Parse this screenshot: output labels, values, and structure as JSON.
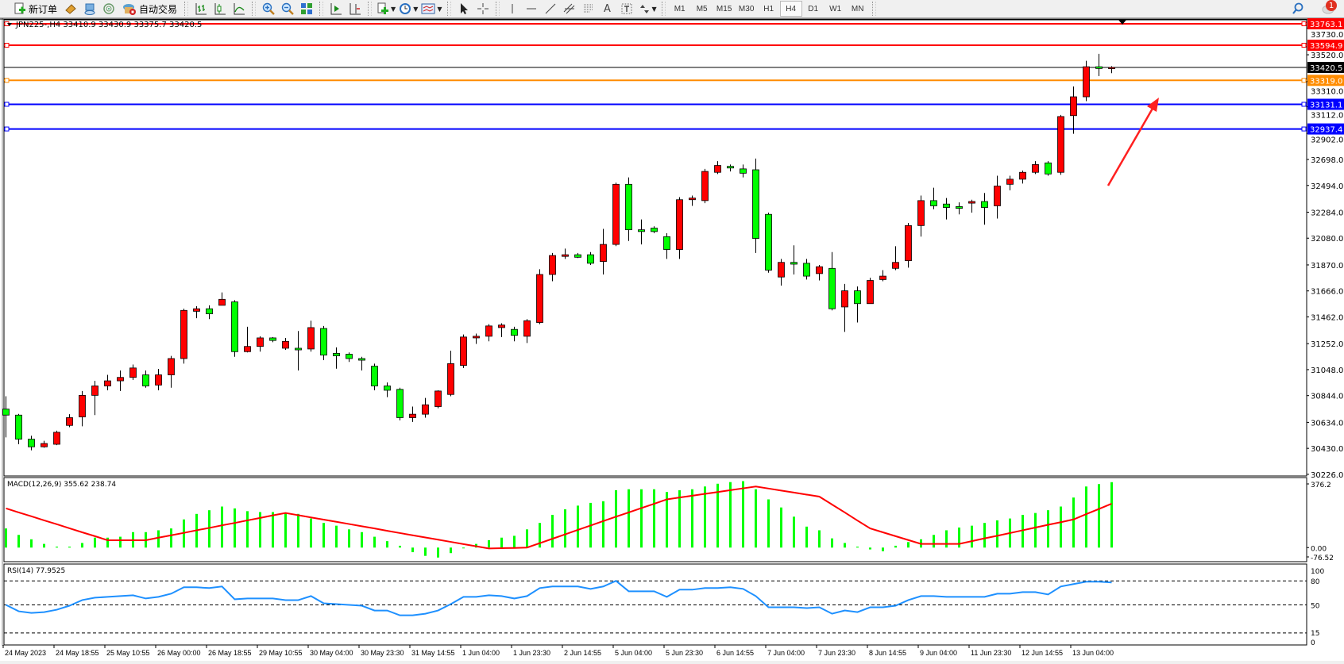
{
  "toolbar": {
    "new_order_label": "新订单",
    "auto_trading_label": "自动交易",
    "icons": [
      "new-order-icon",
      "market-watch-icon",
      "data-window-icon",
      "navigator-icon",
      "signals-icon",
      "auto-trading-icon",
      "bar-chart-icon",
      "candlestick-icon",
      "line-chart-icon",
      "zoom-in-icon",
      "zoom-out-icon",
      "tile-windows-icon",
      "auto-scroll-icon",
      "chart-shift-icon",
      "indicators-icon",
      "periods-icon",
      "templates-icon",
      "cursor-icon",
      "crosshair-icon",
      "vertical-line-icon",
      "horizontal-line-icon",
      "trendline-icon",
      "equidistant-channel-icon",
      "fibonacci-icon",
      "text-icon",
      "text-label-icon",
      "arrows-icon"
    ],
    "text_tool_label": "A",
    "timeframes": [
      "M1",
      "M5",
      "M15",
      "M30",
      "H1",
      "H4",
      "D1",
      "W1",
      "MN"
    ],
    "active_timeframe": "H4",
    "notification_count": "1"
  },
  "chart_data": {
    "type": "candlestick",
    "title": "JPN225-,H4  33410.9 33430.9 33375.7 33420.5",
    "symbol": "JPN225-",
    "timeframe": "H4",
    "colors": {
      "bull": "#ff0000",
      "bear": "#00ff00",
      "wick": "#000000"
    },
    "ylim": [
      30213,
      33788
    ],
    "y_ticks": [
      "33730.0",
      "33520.0",
      "33310.0",
      "33112.0",
      "32902.0",
      "32698.0",
      "32494.0",
      "32284.0",
      "32080.0",
      "31870.0",
      "31666.0",
      "31462.0",
      "31252.0",
      "31048.0",
      "30844.0",
      "30634.0",
      "30430.0",
      "30226.0"
    ],
    "x_ticks": [
      "24 May 2023",
      "24 May 18:55",
      "25 May 10:55",
      "26 May 00:00",
      "26 May 18:55",
      "29 May 10:55",
      "30 May 04:00",
      "30 May 23:30",
      "31 May 14:55",
      "1 Jun 04:00",
      "1 Jun 23:30",
      "2 Jun 14:55",
      "5 Jun 04:00",
      "5 Jun 23:30",
      "6 Jun 14:55",
      "7 Jun 04:00",
      "7 Jun 23:30",
      "8 Jun 14:55",
      "9 Jun 04:00",
      "11 Jun 23:30",
      "12 Jun 14:55",
      "13 Jun 04:00"
    ],
    "ohlc": [
      [
        30738,
        30839,
        30516,
        30691
      ],
      [
        30691,
        30700,
        30462,
        30502
      ],
      [
        30502,
        30529,
        30415,
        30442
      ],
      [
        30442,
        30489,
        30435,
        30468
      ],
      [
        30462,
        30569,
        30455,
        30556
      ],
      [
        30610,
        30698,
        30596,
        30671
      ],
      [
        30677,
        30880,
        30603,
        30846
      ],
      [
        30846,
        30960,
        30691,
        30920
      ],
      [
        30920,
        31007,
        30886,
        30960
      ],
      [
        30960,
        31041,
        30880,
        30987
      ],
      [
        30987,
        31088,
        30967,
        31061
      ],
      [
        31007,
        31041,
        30906,
        30920
      ],
      [
        30927,
        31054,
        30886,
        31007
      ],
      [
        31007,
        31156,
        30906,
        31135
      ],
      [
        31135,
        31526,
        31095,
        31513
      ],
      [
        31506,
        31546,
        31452,
        31526
      ],
      [
        31526,
        31553,
        31445,
        31486
      ],
      [
        31553,
        31654,
        31553,
        31600
      ],
      [
        31580,
        31593,
        31149,
        31189
      ],
      [
        31189,
        31385,
        31183,
        31230
      ],
      [
        31230,
        31310,
        31189,
        31297
      ],
      [
        31297,
        31304,
        31263,
        31277
      ],
      [
        31216,
        31297,
        31203,
        31270
      ],
      [
        31216,
        31351,
        31041,
        31203
      ],
      [
        31210,
        31432,
        31189,
        31378
      ],
      [
        31371,
        31391,
        31122,
        31162
      ],
      [
        31176,
        31223,
        31055,
        31156
      ],
      [
        31169,
        31183,
        31108,
        31135
      ],
      [
        31135,
        31149,
        31041,
        31122
      ],
      [
        31075,
        31095,
        30886,
        30920
      ],
      [
        30920,
        30947,
        30832,
        30886
      ],
      [
        30893,
        30906,
        30650,
        30671
      ],
      [
        30671,
        30758,
        30637,
        30698
      ],
      [
        30698,
        30826,
        30671,
        30772
      ],
      [
        30758,
        30886,
        30745,
        30880
      ],
      [
        30853,
        31196,
        30839,
        31095
      ],
      [
        31081,
        31324,
        31061,
        31304
      ],
      [
        31297,
        31331,
        31250,
        31310
      ],
      [
        31310,
        31405,
        31270,
        31391
      ],
      [
        31378,
        31412,
        31304,
        31398
      ],
      [
        31364,
        31385,
        31270,
        31317
      ],
      [
        31310,
        31445,
        31257,
        31432
      ],
      [
        31418,
        31836,
        31405,
        31795
      ],
      [
        31795,
        31964,
        31742,
        31944
      ],
      [
        31937,
        31998,
        31917,
        31950
      ],
      [
        31950,
        31964,
        31924,
        31930
      ],
      [
        31950,
        31971,
        31870,
        31883
      ],
      [
        31897,
        32153,
        31795,
        32031
      ],
      [
        32031,
        32516,
        32018,
        32503
      ],
      [
        32503,
        32557,
        32058,
        32146
      ],
      [
        32146,
        32227,
        32031,
        32132
      ],
      [
        32159,
        32173,
        32119,
        32132
      ],
      [
        32092,
        32119,
        31917,
        31991
      ],
      [
        31991,
        32402,
        31917,
        32382
      ],
      [
        32382,
        32415,
        32334,
        32395
      ],
      [
        32375,
        32624,
        32355,
        32604
      ],
      [
        32597,
        32685,
        32584,
        32651
      ],
      [
        32644,
        32658,
        32604,
        32631
      ],
      [
        32624,
        32658,
        32557,
        32590
      ],
      [
        32617,
        32705,
        31964,
        32078
      ],
      [
        32267,
        32281,
        31809,
        31829
      ],
      [
        31775,
        31917,
        31708,
        31890
      ],
      [
        31890,
        32024,
        31795,
        31876
      ],
      [
        31883,
        31917,
        31755,
        31782
      ],
      [
        31802,
        31870,
        31748,
        31856
      ],
      [
        31843,
        31971,
        31513,
        31526
      ],
      [
        31540,
        31721,
        31344,
        31667
      ],
      [
        31667,
        31701,
        31418,
        31566
      ],
      [
        31566,
        31769,
        31566,
        31748
      ],
      [
        31755,
        31829,
        31742,
        31782
      ],
      [
        31843,
        32017,
        31829,
        31890
      ],
      [
        31903,
        32200,
        31849,
        32179
      ],
      [
        32179,
        32415,
        32092,
        32375
      ],
      [
        32375,
        32476,
        32307,
        32334
      ],
      [
        32348,
        32395,
        32227,
        32321
      ],
      [
        32328,
        32361,
        32267,
        32314
      ],
      [
        32355,
        32382,
        32281,
        32368
      ],
      [
        32368,
        32435,
        32186,
        32321
      ],
      [
        32334,
        32570,
        32234,
        32489
      ],
      [
        32503,
        32570,
        32456,
        32543
      ],
      [
        32543,
        32611,
        32509,
        32597
      ],
      [
        32597,
        32685,
        32584,
        32658
      ],
      [
        32671,
        32685,
        32570,
        32584
      ],
      [
        32597,
        33048,
        32577,
        33035
      ],
      [
        33042,
        33271,
        32900,
        33190
      ],
      [
        33190,
        33473,
        33156,
        33426
      ],
      [
        33426,
        33527,
        33352,
        33412
      ],
      [
        33410.9,
        33430.9,
        33375.7,
        33420.5
      ]
    ],
    "price_lines": [
      {
        "value": "33763.1",
        "color": "#ff0000"
      },
      {
        "value": "33594.9",
        "color": "#ff0000"
      },
      {
        "value": "33420.5",
        "color": "#000000",
        "kind": "bid"
      },
      {
        "value": "33319.0",
        "color": "#ff8c00"
      },
      {
        "value": "33131.1",
        "color": "#0000ff"
      },
      {
        "value": "32937.4",
        "color": "#0000ff"
      }
    ],
    "annotation": {
      "type": "arrow",
      "color": "#ff2020",
      "direction": "up-right"
    },
    "macd": {
      "label": "MACD(12,26,9) 355.62 238.74",
      "ylim": [
        -76.52,
        376.2
      ],
      "ticks": [
        "376.2",
        "0.00",
        "-76.52"
      ],
      "histogram_color": "#00ff00",
      "signal_color": "#ff0000",
      "histogram": [
        104,
        69,
        45,
        20,
        5,
        5,
        25,
        54,
        54,
        59,
        84,
        84,
        94,
        104,
        153,
        183,
        203,
        223,
        213,
        198,
        193,
        193,
        188,
        183,
        158,
        134,
        119,
        99,
        84,
        59,
        35,
        10,
        -25,
        -45,
        -54,
        -30,
        0,
        20,
        40,
        54,
        64,
        99,
        134,
        178,
        208,
        228,
        243,
        252,
        312,
        317,
        317,
        317,
        302,
        312,
        317,
        332,
        347,
        356,
        361,
        317,
        262,
        218,
        168,
        114,
        94,
        50,
        25,
        5,
        -10,
        -20,
        10,
        30,
        45,
        69,
        94,
        109,
        119,
        134,
        148,
        158,
        178,
        188,
        203,
        223,
        272,
        332,
        345,
        355.62
      ],
      "signal": [
        213,
        191,
        170,
        148,
        127,
        105,
        83,
        62,
        40,
        40,
        40,
        40,
        54,
        67,
        80,
        94,
        107,
        121,
        134,
        148,
        161,
        175,
        188,
        176,
        164,
        152,
        140,
        128,
        116,
        104,
        91,
        79,
        67,
        55,
        43,
        31,
        19,
        7,
        -5,
        -3,
        -2,
        0,
        24,
        48,
        72,
        96,
        120,
        144,
        168,
        191,
        215,
        238,
        262,
        272,
        282,
        292,
        302,
        312,
        322,
        332,
        321,
        310,
        299,
        288,
        277,
        234,
        191,
        147,
        104,
        83,
        62,
        41,
        20,
        20,
        20,
        20,
        35,
        50,
        64,
        79,
        94,
        109,
        124,
        138,
        153,
        182,
        210,
        238.74
      ]
    },
    "rsi": {
      "label": "RSI(14) 77.9525",
      "ylim": [
        0,
        100
      ],
      "ticks": [
        "100",
        "80",
        "50",
        "15",
        "0"
      ],
      "levels": [
        80,
        50,
        15
      ],
      "line_color": "#1e90ff",
      "values": [
        50,
        42,
        40,
        41,
        44,
        49,
        56,
        59,
        60,
        61,
        62,
        58,
        60,
        64,
        72,
        72,
        71,
        73,
        57,
        58,
        58,
        58,
        56,
        56,
        61,
        52,
        51,
        50,
        49,
        43,
        43,
        37,
        37,
        39,
        43,
        51,
        60,
        60,
        62,
        61,
        58,
        61,
        71,
        73,
        73,
        73,
        70,
        73,
        80,
        67,
        67,
        67,
        60,
        69,
        69,
        71,
        71,
        72,
        70,
        61,
        47,
        47,
        47,
        46,
        47,
        39,
        43,
        41,
        47,
        47,
        49,
        56,
        61,
        61,
        60,
        60,
        60,
        60,
        64,
        64,
        66,
        66,
        63,
        73,
        76,
        79,
        79,
        77.95
      ]
    }
  }
}
